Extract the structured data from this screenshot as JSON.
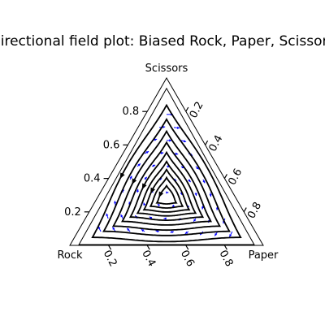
{
  "chart_data": {
    "type": "ternary-vector-field",
    "title": "Directional field plot: Biased Rock, Paper, Scissors",
    "corners": {
      "top": "Scissors",
      "left": "Rock",
      "right": "Paper"
    },
    "axis_ticks": {
      "left": [
        "0.2",
        "0.4",
        "0.6",
        "0.8"
      ],
      "right": [
        "0.2",
        "0.4",
        "0.6",
        "0.8"
      ],
      "bottom": [
        "0.8",
        "0.6",
        "0.4",
        "0.2"
      ]
    },
    "tick_values": [
      0.2,
      0.4,
      0.6,
      0.8
    ],
    "orbit_center": [
      0.35,
      0.35,
      0.3
    ],
    "orbit_levels": [
      0.12,
      0.2,
      0.28,
      0.36,
      0.45,
      0.55,
      0.66,
      0.78,
      0.92
    ],
    "field_grid_steps": 12,
    "colors": {
      "arrows": "#0000ff",
      "orbits": "#000000",
      "frame": "#000000"
    }
  }
}
